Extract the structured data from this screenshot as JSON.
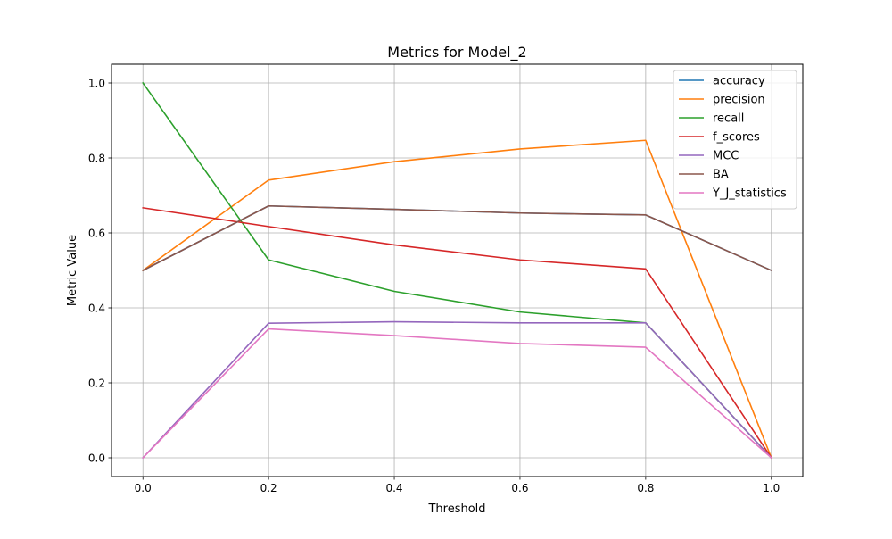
{
  "chart_data": {
    "type": "line",
    "title": "Metrics for Model_2",
    "xlabel": "Threshold",
    "ylabel": "Metric Value",
    "xlim": [
      -0.05,
      1.05
    ],
    "ylim": [
      -0.05,
      1.05
    ],
    "xticks": [
      0.0,
      0.2,
      0.4,
      0.6,
      0.8,
      1.0
    ],
    "xtick_labels": [
      "0.0",
      "0.2",
      "0.4",
      "0.6",
      "0.8",
      "1.0"
    ],
    "yticks": [
      0.0,
      0.2,
      0.4,
      0.6,
      0.8,
      1.0
    ],
    "ytick_labels": [
      "0.0",
      "0.2",
      "0.4",
      "0.6",
      "0.8",
      "1.0"
    ],
    "grid": true,
    "legend_position": "top-right",
    "x": [
      0.0,
      0.2,
      0.4,
      0.6,
      0.8,
      1.0
    ],
    "series": [
      {
        "name": "accuracy",
        "color": "#1f77b4",
        "values": [
          0.5,
          0.672,
          0.663,
          0.653,
          0.648,
          0.5
        ]
      },
      {
        "name": "precision",
        "color": "#ff7f0e",
        "values": [
          0.5,
          0.741,
          0.79,
          0.824,
          0.847,
          0.0
        ]
      },
      {
        "name": "recall",
        "color": "#2ca02c",
        "values": [
          1.0,
          0.528,
          0.444,
          0.389,
          0.36,
          0.0
        ]
      },
      {
        "name": "f_scores",
        "color": "#d62728",
        "values": [
          0.667,
          0.617,
          0.568,
          0.528,
          0.504,
          0.0
        ]
      },
      {
        "name": "MCC",
        "color": "#9467bd",
        "values": [
          0.0,
          0.359,
          0.363,
          0.36,
          0.36,
          0.0
        ]
      },
      {
        "name": "BA",
        "color": "#8c564b",
        "values": [
          0.5,
          0.672,
          0.663,
          0.653,
          0.648,
          0.5
        ]
      },
      {
        "name": "Y_J_statistics",
        "color": "#e377c2",
        "values": [
          0.0,
          0.344,
          0.326,
          0.305,
          0.295,
          0.0
        ]
      }
    ]
  }
}
